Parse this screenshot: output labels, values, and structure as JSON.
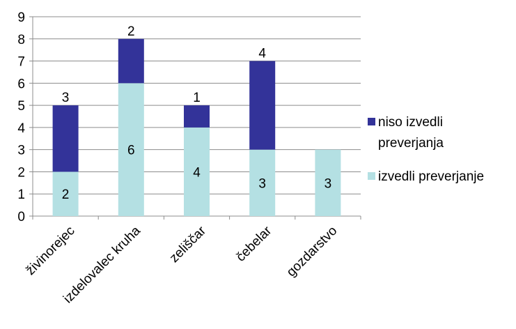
{
  "chart_data": {
    "type": "bar",
    "stacked": true,
    "categories": [
      "živinorejec",
      "izdelovalec kruha",
      "zeliščar",
      "čebelar",
      "gozdarstvo"
    ],
    "series": [
      {
        "name": "izvedli preverjanje",
        "values": [
          2,
          6,
          4,
          3,
          3
        ],
        "color": "#b4e0e3"
      },
      {
        "name": "niso izvedli preverjanja",
        "values": [
          3,
          2,
          1,
          4,
          0
        ],
        "color": "#333399"
      }
    ],
    "ylim": [
      0,
      9
    ],
    "yticks": [
      0,
      1,
      2,
      3,
      4,
      5,
      6,
      7,
      8,
      9
    ],
    "grid": true,
    "legend_position": "right",
    "legend_order": [
      1,
      0
    ],
    "legend_lines": [
      [
        "niso izvedli",
        "preverjanja"
      ],
      [
        "izvedli preverjanje"
      ]
    ],
    "data_labels": true
  }
}
